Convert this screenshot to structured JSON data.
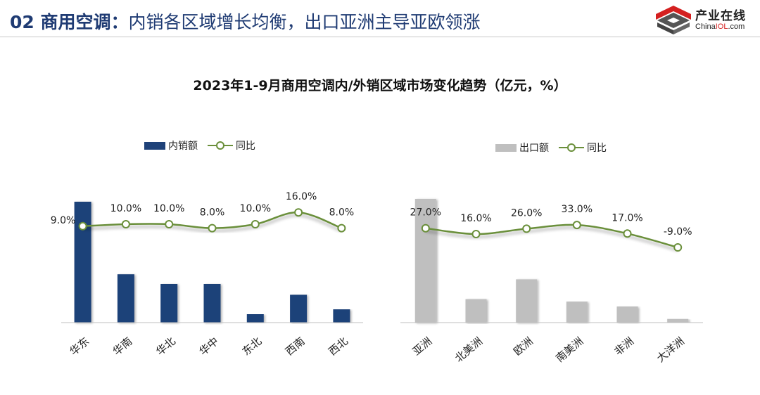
{
  "header": {
    "title_bold": "02 商用空调：",
    "title_rest": "内销各区域增长均衡，出口亚洲主导亚欧领涨"
  },
  "logo": {
    "cn": "产业在线",
    "en_prefix": "China",
    "en_highlight": "IOL",
    "en_suffix": ".com"
  },
  "chart_title": "2023年1-9月商用空调内/外销区域市场变化趋势（亿元，%）",
  "colors": {
    "domestic_bar": "#1f4279",
    "export_bar": "#bfbfbf",
    "yoy_line": "#6a8f3a",
    "title": "#1f3b73"
  },
  "chart_data": [
    {
      "type": "bar",
      "legend": {
        "bar": "内销额",
        "line": "同比"
      },
      "categories": [
        "华东",
        "华南",
        "华北",
        "华中",
        "东北",
        "西南",
        "西北"
      ],
      "series": [
        {
          "name": "内销额",
          "type": "bar",
          "values": [
            100,
            40,
            32,
            32,
            7,
            23,
            11
          ]
        },
        {
          "name": "同比",
          "type": "line",
          "values": [
            9.0,
            10.0,
            10.0,
            8.0,
            10.0,
            16.0,
            8.0
          ],
          "labels": [
            "9.0%",
            "10.0%",
            "10.0%",
            "8.0%",
            "10.0%",
            "16.0%",
            "8.0%"
          ]
        }
      ],
      "bar_ylim": [
        0,
        100
      ],
      "line_ylim": [
        -40,
        20
      ],
      "y_axis_visible": false,
      "grid": false,
      "legend_position": "top"
    },
    {
      "type": "bar",
      "legend": {
        "bar": "出口额",
        "line": "同比"
      },
      "categories": [
        "亚洲",
        "北美洲",
        "欧洲",
        "南美洲",
        "非洲",
        "大洋洲"
      ],
      "series": [
        {
          "name": "出口额",
          "type": "bar",
          "values": [
            100,
            19,
            35,
            17,
            13,
            3
          ]
        },
        {
          "name": "同比",
          "type": "line",
          "values": [
            27.0,
            16.0,
            26.0,
            33.0,
            17.0,
            -9.0
          ],
          "labels": [
            "27.0%",
            "16.0%",
            "26.0%",
            "33.0%",
            "17.0%",
            "-9.0%"
          ]
        }
      ],
      "bar_ylim": [
        0,
        100
      ],
      "line_ylim": [
        -150,
        45
      ],
      "y_axis_visible": false,
      "grid": false,
      "legend_position": "top"
    }
  ]
}
